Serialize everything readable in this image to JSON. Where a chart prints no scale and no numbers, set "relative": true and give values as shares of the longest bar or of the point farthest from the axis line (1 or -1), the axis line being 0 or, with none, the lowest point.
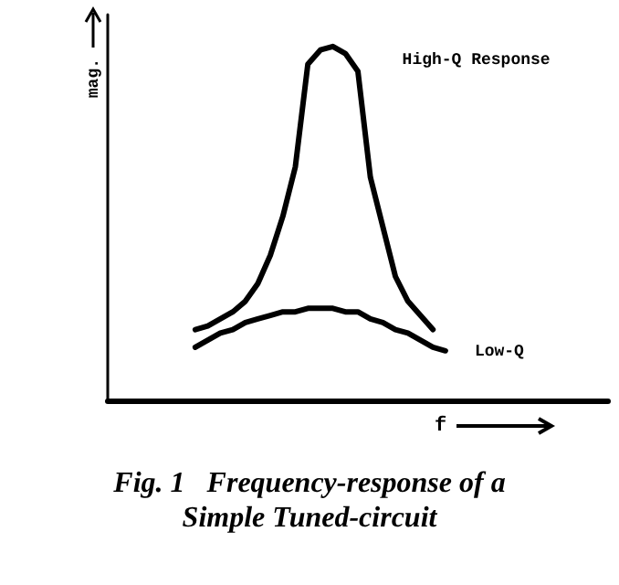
{
  "chart_data": {
    "type": "line",
    "relative": true,
    "title": "Fig. 1   Frequency-response of a Simple Tuned-circuit",
    "xlabel": "f",
    "ylabel": "mag.",
    "legend": false,
    "grid": false,
    "marker": "none",
    "line_style": "solid",
    "categories": [
      null,
      null,
      null,
      null,
      null,
      null,
      null,
      null,
      null,
      null,
      null,
      null,
      null,
      null,
      null,
      null,
      null,
      null,
      null,
      null,
      null,
      null,
      null,
      null,
      null,
      null,
      null,
      null,
      null,
      null,
      null,
      null,
      null,
      null,
      null,
      null,
      null,
      null,
      null,
      null,
      null
    ],
    "series": [
      {
        "name": "High-Q Response",
        "color": "#000000",
        "values": [
          null,
          null,
          null,
          null,
          null,
          null,
          null,
          0.2,
          0.21,
          0.23,
          0.25,
          0.28,
          0.33,
          0.41,
          0.52,
          0.66,
          0.95,
          0.99,
          1,
          0.98,
          0.93,
          0.63,
          0.49,
          0.35,
          0.28,
          0.24,
          0.2,
          null,
          null,
          null,
          null,
          null,
          null,
          null,
          null,
          null,
          null,
          null,
          null,
          null,
          null
        ]
      },
      {
        "name": "Low-Q",
        "color": "#000000",
        "values": [
          null,
          null,
          null,
          null,
          null,
          null,
          null,
          0.15,
          0.17,
          0.19,
          0.2,
          0.22,
          0.23,
          0.24,
          0.25,
          0.25,
          0.26,
          0.26,
          0.26,
          0.25,
          0.25,
          0.23,
          0.22,
          0.2,
          0.19,
          0.17,
          0.15,
          0.14,
          null,
          null,
          null,
          null,
          null,
          null,
          null,
          null,
          null,
          null,
          null,
          null,
          null
        ]
      }
    ]
  }
}
